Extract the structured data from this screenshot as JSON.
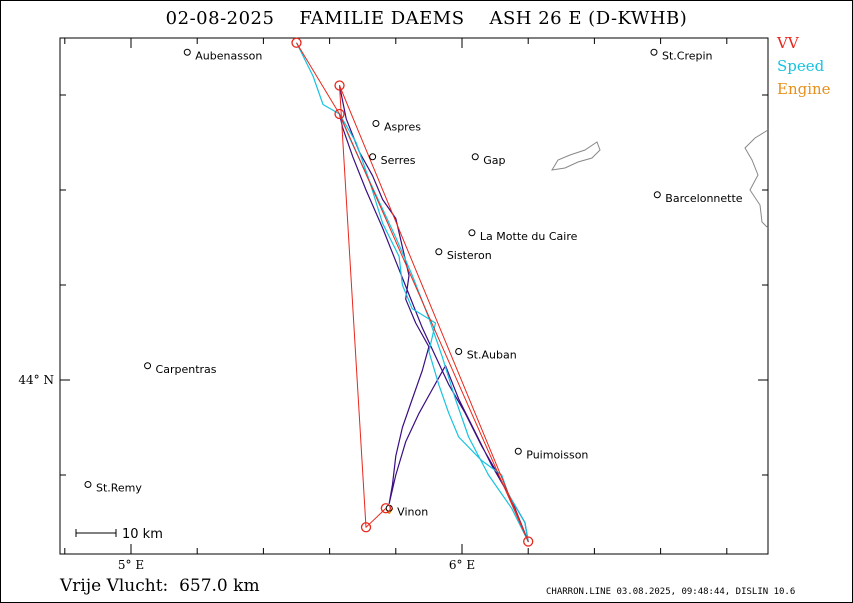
{
  "title": "02-08-2025    FAMILIE DAEMS    ASH 26 E (D-KWHB)",
  "legend": [
    {
      "label": "VV",
      "color": "#e8271c"
    },
    {
      "label": "Speed",
      "color": "#17c3e0"
    },
    {
      "label": "Engine",
      "color": "#e6901c"
    }
  ],
  "scale_bar": "10  km",
  "axis": {
    "x_ticks": [
      {
        "value": 5,
        "label": "5° E"
      },
      {
        "value": 6,
        "label": "6° E"
      }
    ],
    "y_ticks": [
      {
        "value": 44,
        "label": "44° N"
      }
    ]
  },
  "cities": [
    {
      "name": "Aubenasson",
      "lon": 5.17,
      "lat": 44.69
    },
    {
      "name": "St.Crepin",
      "lon": 6.58,
      "lat": 44.69
    },
    {
      "name": "Aspres",
      "lon": 5.74,
      "lat": 44.54
    },
    {
      "name": "Serres",
      "lon": 5.73,
      "lat": 44.47
    },
    {
      "name": "Gap",
      "lon": 6.04,
      "lat": 44.47
    },
    {
      "name": "Barcelonnette",
      "lon": 6.59,
      "lat": 44.39
    },
    {
      "name": "La Motte du Caire",
      "lon": 6.03,
      "lat": 44.31
    },
    {
      "name": "Sisteron",
      "lon": 5.93,
      "lat": 44.27
    },
    {
      "name": "St.Auban",
      "lon": 5.99,
      "lat": 44.06
    },
    {
      "name": "Carpentras",
      "lon": 5.05,
      "lat": 44.03
    },
    {
      "name": "Puimoisson",
      "lon": 6.17,
      "lat": 43.85
    },
    {
      "name": "St.Remy",
      "lon": 4.87,
      "lat": 43.78
    },
    {
      "name": "Vinon",
      "lon": 5.78,
      "lat": 43.73
    }
  ],
  "turnpoints": [
    {
      "lon": 5.5,
      "lat": 44.71
    },
    {
      "lon": 5.63,
      "lat": 44.56
    },
    {
      "lon": 5.63,
      "lat": 44.62
    },
    {
      "lon": 6.2,
      "lat": 43.66
    },
    {
      "lon": 5.71,
      "lat": 43.69
    },
    {
      "lon": 5.77,
      "lat": 43.73
    }
  ],
  "vv_track": [
    [
      5.5,
      44.71
    ],
    [
      5.63,
      44.56
    ],
    [
      6.2,
      43.66
    ],
    [
      5.63,
      44.62
    ],
    [
      5.71,
      43.69
    ],
    [
      5.77,
      43.73
    ]
  ],
  "speed_track": [
    [
      5.5,
      44.71
    ],
    [
      5.55,
      44.64
    ],
    [
      5.58,
      44.58
    ],
    [
      5.63,
      44.56
    ],
    [
      5.68,
      44.5
    ],
    [
      5.72,
      44.42
    ],
    [
      5.76,
      44.33
    ],
    [
      5.81,
      44.26
    ],
    [
      5.82,
      44.2
    ],
    [
      5.85,
      44.15
    ],
    [
      5.92,
      44.12
    ],
    [
      5.9,
      44.06
    ],
    [
      5.93,
      43.99
    ],
    [
      5.96,
      43.93
    ],
    [
      5.99,
      43.88
    ],
    [
      6.06,
      43.83
    ],
    [
      6.12,
      43.8
    ],
    [
      6.14,
      43.76
    ],
    [
      6.19,
      43.7
    ],
    [
      6.2,
      43.66
    ],
    [
      6.15,
      43.73
    ],
    [
      6.08,
      43.8
    ],
    [
      6.02,
      43.88
    ],
    [
      5.98,
      43.96
    ],
    [
      5.94,
      44.05
    ],
    [
      5.9,
      44.13
    ],
    [
      5.85,
      44.22
    ],
    [
      5.8,
      44.3
    ],
    [
      5.74,
      44.39
    ],
    [
      5.7,
      44.45
    ],
    [
      5.66,
      44.51
    ],
    [
      5.63,
      44.56
    ]
  ],
  "engine_track": [
    [
      5.77,
      43.73
    ],
    [
      5.78,
      43.72
    ],
    [
      5.79,
      43.73
    ]
  ],
  "purple_track": [
    [
      5.63,
      44.62
    ],
    [
      5.65,
      44.55
    ],
    [
      5.69,
      44.48
    ],
    [
      5.73,
      44.43
    ],
    [
      5.76,
      44.38
    ],
    [
      5.8,
      44.34
    ],
    [
      5.82,
      44.28
    ],
    [
      5.84,
      44.22
    ],
    [
      5.83,
      44.17
    ],
    [
      5.86,
      44.12
    ],
    [
      5.9,
      44.07
    ],
    [
      5.88,
      44.02
    ],
    [
      5.85,
      43.96
    ],
    [
      5.82,
      43.9
    ],
    [
      5.8,
      43.84
    ],
    [
      5.79,
      43.78
    ],
    [
      5.78,
      43.74
    ],
    [
      5.8,
      43.8
    ],
    [
      5.83,
      43.87
    ],
    [
      5.87,
      43.93
    ],
    [
      5.91,
      43.98
    ],
    [
      5.95,
      44.03
    ],
    [
      5.99,
      43.96
    ],
    [
      6.04,
      43.89
    ],
    [
      6.09,
      43.82
    ],
    [
      6.14,
      43.76
    ],
    [
      6.19,
      43.7
    ],
    [
      6.2,
      43.66
    ],
    [
      6.16,
      43.73
    ],
    [
      6.11,
      43.8
    ],
    [
      6.06,
      43.86
    ],
    [
      6.01,
      43.93
    ],
    [
      5.96,
      43.99
    ],
    [
      5.92,
      44.05
    ],
    [
      5.88,
      44.11
    ],
    [
      5.84,
      44.18
    ],
    [
      5.8,
      44.25
    ],
    [
      5.76,
      44.32
    ],
    [
      5.71,
      44.4
    ],
    [
      5.67,
      44.47
    ],
    [
      5.64,
      44.53
    ],
    [
      5.63,
      44.56
    ]
  ],
  "bottom_text": "Vrije Vlucht:  657.0 km",
  "footer": "CHARRON.LINE 03.08.2025, 09:48:44, DISLIN 10.6"
}
